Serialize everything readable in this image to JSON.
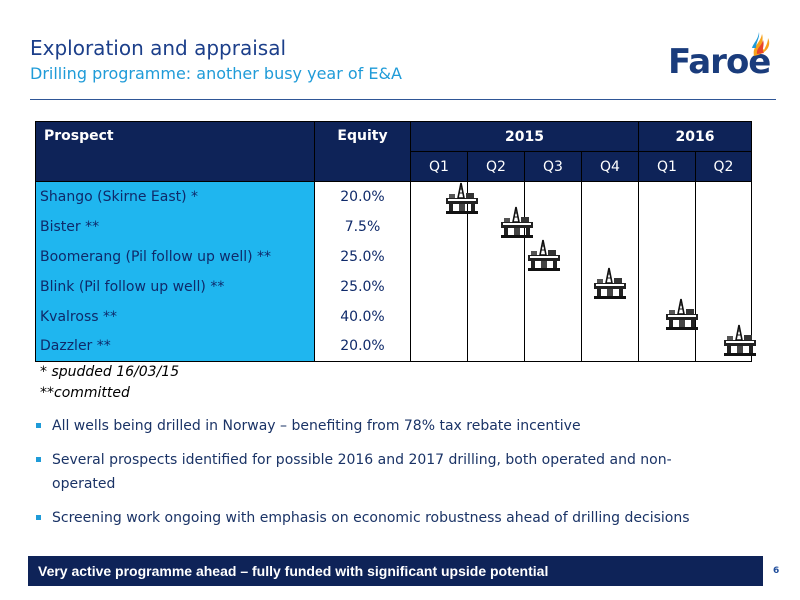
{
  "header": {
    "title": "Exploration and appraisal",
    "subtitle": "Drilling programme: another busy year of E&A",
    "logo_text": "Faroe"
  },
  "table": {
    "col_prospect": "Prospect",
    "col_equity": "Equity",
    "year_2015": "2015",
    "year_2016": "2016",
    "quarters": [
      "Q1",
      "Q2",
      "Q3",
      "Q4",
      "Q1",
      "Q2"
    ],
    "rows": [
      {
        "prospect": "Shango (Skirne East) *",
        "equity": "20.0%"
      },
      {
        "prospect": "Bister **",
        "equity": "7.5%"
      },
      {
        "prospect": "Boomerang (Pil follow up well) **",
        "equity": "25.0%"
      },
      {
        "prospect": "Blink (Pil follow up well) **",
        "equity": "25.0%"
      },
      {
        "prospect": "Kvalross **",
        "equity": "40.0%"
      },
      {
        "prospect": "Dazzler **",
        "equity": "20.0%"
      }
    ]
  },
  "notes": {
    "spudded": "* spudded 16/03/15",
    "committed": "**committed"
  },
  "bullets": [
    "All wells being drilled in Norway – benefiting from 78% tax rebate incentive",
    "Several prospects identified for possible 2016 and 2017 drilling, both operated and non-operated",
    "Screening work ongoing with emphasis on economic robustness ahead of drilling decisions"
  ],
  "banner": "Very active programme ahead – fully funded with significant upside potential",
  "page_number": "6",
  "icons": {
    "rig": "drilling-rig-icon"
  },
  "colors": {
    "navy": "#0e2358",
    "cyan": "#1fb6ef",
    "title": "#1c3f8a",
    "subtitle": "#1f9bd8"
  }
}
